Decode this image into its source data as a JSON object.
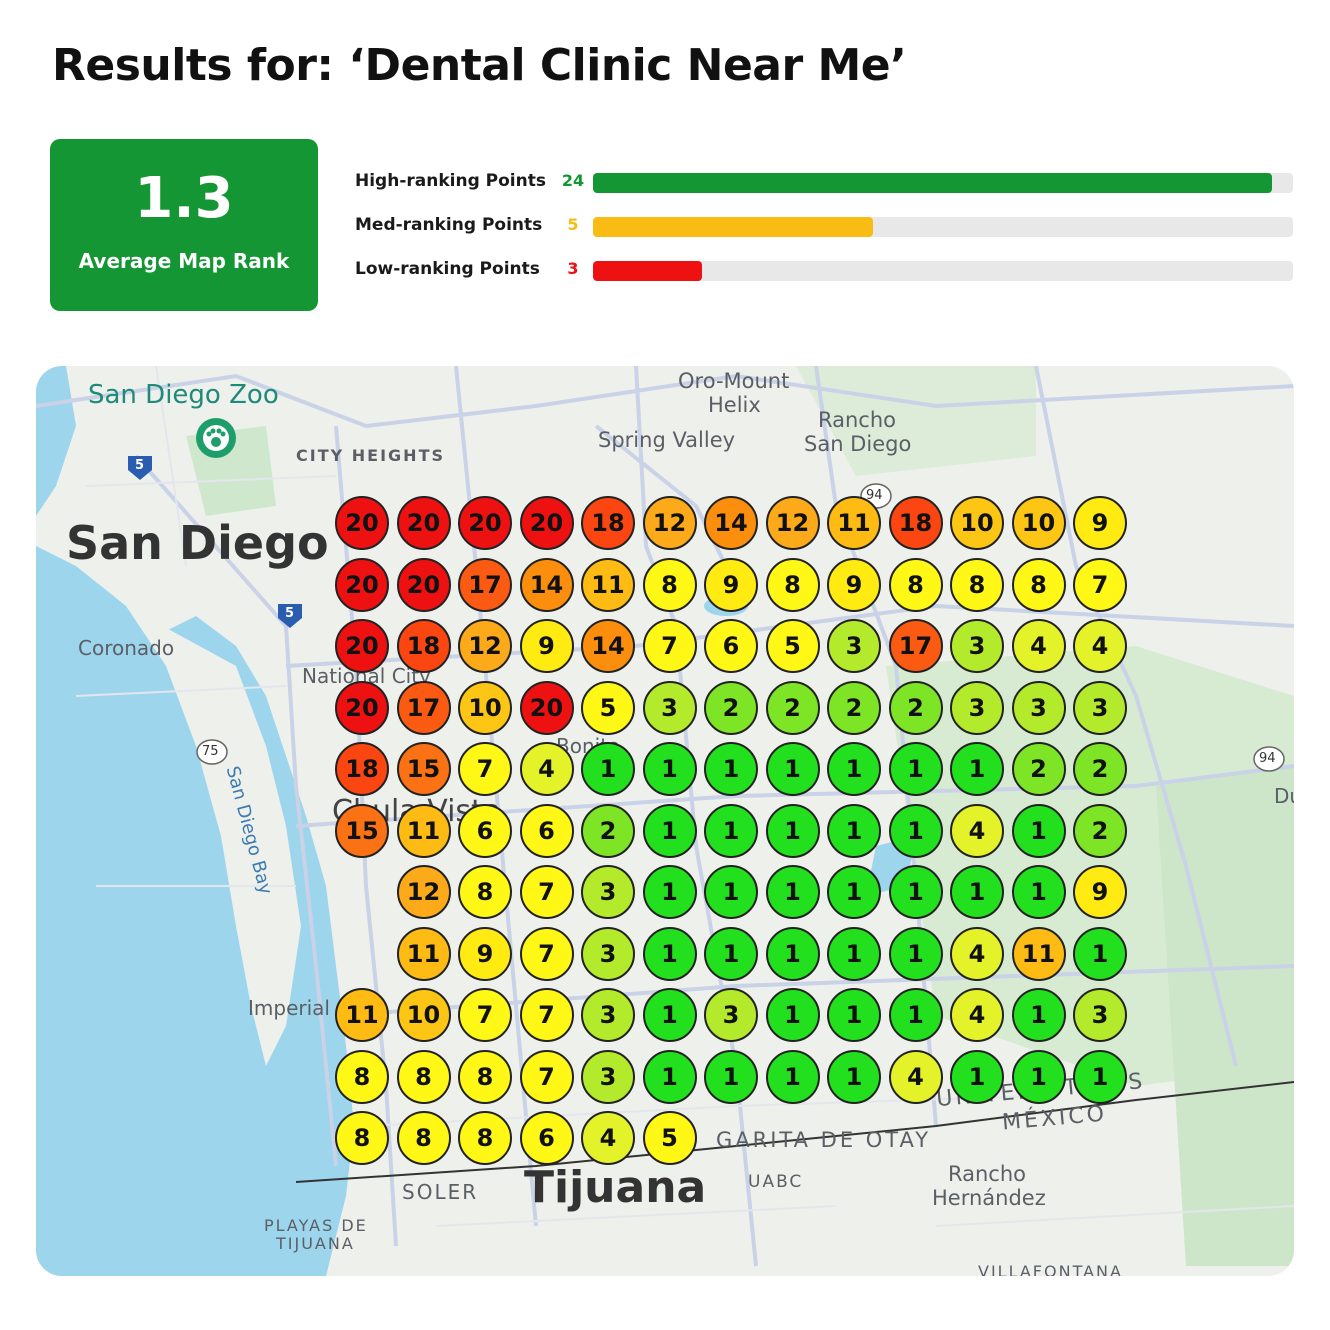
{
  "title": "Results for: ‘Dental Clinic Near Me’",
  "summary": {
    "average_rank": "1.3",
    "average_label": "Average Map Rank"
  },
  "stats": [
    {
      "label": "High-ranking Points",
      "count": "24",
      "color": "#149634",
      "fill": 0.97
    },
    {
      "label": "Med-ranking Points",
      "count": "5",
      "color": "#f9bc15",
      "fill": 0.4
    },
    {
      "label": "Low-ranking Points",
      "count": "3",
      "color": "#ee1111",
      "fill": 0.155
    }
  ],
  "map": {
    "labels": {
      "san_diego_zoo": "San Diego Zoo",
      "city_heights": "CITY HEIGHTS",
      "san_diego": "San Diego",
      "coronado": "Coronado",
      "national_city": "National City",
      "san_diego_bay": "San Diego Bay",
      "imperial": "Imperial",
      "oro_mount_helix_1": "Oro-Mount",
      "oro_mount_helix_2": "Helix",
      "spring_valley": "Spring Valley",
      "rancho_sd_1": "Rancho",
      "rancho_sd_2": "San Diego",
      "bonita": "Bonita",
      "chula_vista": "Chula Vista",
      "tijuana": "Tijuana",
      "soler": "SOLER",
      "playas_1": "PLAYAS DE",
      "playas_2": "TIJUANA",
      "garita": "GARITA DE OTAY",
      "uabc": "UABC",
      "rancho_h_1": "Rancho",
      "rancho_h_2": "Hernández",
      "villafontana": "VILLAFONTANA",
      "united_states": "UNITED STATES",
      "mexico": "MÉXICO",
      "route_5a": "5",
      "route_5b": "5",
      "route_75": "75",
      "route_94a": "94",
      "route_94b": "94",
      "du": "Du"
    },
    "colors": {
      "water": "#9dd5ec",
      "land": "#eef0ec",
      "park": "#cfe8cd",
      "road": "#c9d2e6",
      "border": "#333333"
    }
  },
  "rank_grid": [
    [
      20,
      20,
      20,
      20,
      18,
      12,
      14,
      12,
      11,
      18,
      10,
      10,
      9
    ],
    [
      20,
      20,
      17,
      14,
      11,
      8,
      9,
      8,
      9,
      8,
      8,
      8,
      7
    ],
    [
      20,
      18,
      12,
      9,
      14,
      7,
      6,
      5,
      3,
      17,
      3,
      4,
      4
    ],
    [
      20,
      17,
      10,
      20,
      5,
      3,
      2,
      2,
      2,
      2,
      3,
      3,
      3
    ],
    [
      18,
      15,
      7,
      4,
      1,
      1,
      1,
      1,
      1,
      1,
      1,
      2,
      2
    ],
    [
      15,
      11,
      6,
      6,
      2,
      1,
      1,
      1,
      1,
      1,
      4,
      1,
      2
    ],
    [
      null,
      12,
      8,
      7,
      3,
      1,
      1,
      1,
      1,
      1,
      1,
      1,
      9
    ],
    [
      null,
      11,
      9,
      7,
      3,
      1,
      1,
      1,
      1,
      1,
      4,
      11,
      1
    ],
    [
      11,
      10,
      7,
      7,
      3,
      1,
      3,
      1,
      1,
      1,
      4,
      1,
      3
    ],
    [
      8,
      8,
      8,
      7,
      3,
      1,
      1,
      1,
      1,
      4,
      1,
      1,
      1
    ],
    [
      8,
      8,
      8,
      6,
      4,
      5,
      null,
      null,
      null,
      null,
      null,
      null,
      null
    ]
  ],
  "rank_colors": {
    "1": "#22e01e",
    "2": "#7ee526",
    "3": "#b3ea2c",
    "4": "#e4f22a",
    "5": "#fff715",
    "6": "#fff715",
    "7": "#fff715",
    "8": "#fff715",
    "9": "#ffea12",
    "10": "#fdc514",
    "11": "#fdbb13",
    "12": "#fca91a",
    "14": "#fb8e0d",
    "15": "#fb7215",
    "17": "#fa5a12",
    "18": "#fb4611",
    "20": "#ee1111"
  }
}
